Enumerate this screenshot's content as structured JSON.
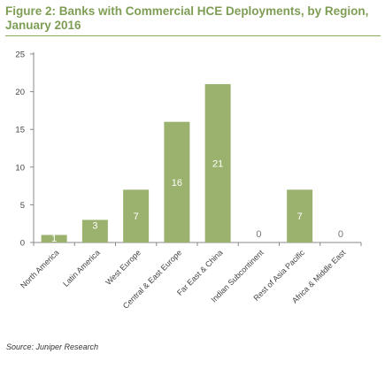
{
  "figure": {
    "title": "Figure 2: Banks with Commercial HCE Deployments, by Region, January 2016",
    "source": "Source: Juniper Research"
  },
  "chart_data": {
    "type": "bar",
    "categories": [
      "North America",
      "Latin America",
      "West Europe",
      "Central & East Europe",
      "Far East & China",
      "Indian Subcontinent",
      "Rest of Asia Pacific",
      "Africa & Middle East"
    ],
    "values": [
      1,
      3,
      7,
      16,
      21,
      0,
      7,
      0
    ],
    "xlabel": "",
    "ylabel": "",
    "ylim": [
      0,
      25
    ],
    "yticks": [
      0,
      5,
      10,
      15,
      20,
      25
    ],
    "grid": false,
    "legend": "none",
    "data_labels": [
      "1",
      "3",
      "7",
      "16",
      "21",
      "0",
      "7",
      "0"
    ],
    "colors": {
      "bar": "#9bb26e",
      "label_inside": "#ffffff",
      "label_outside": "#777777",
      "axis": "#888888"
    }
  }
}
